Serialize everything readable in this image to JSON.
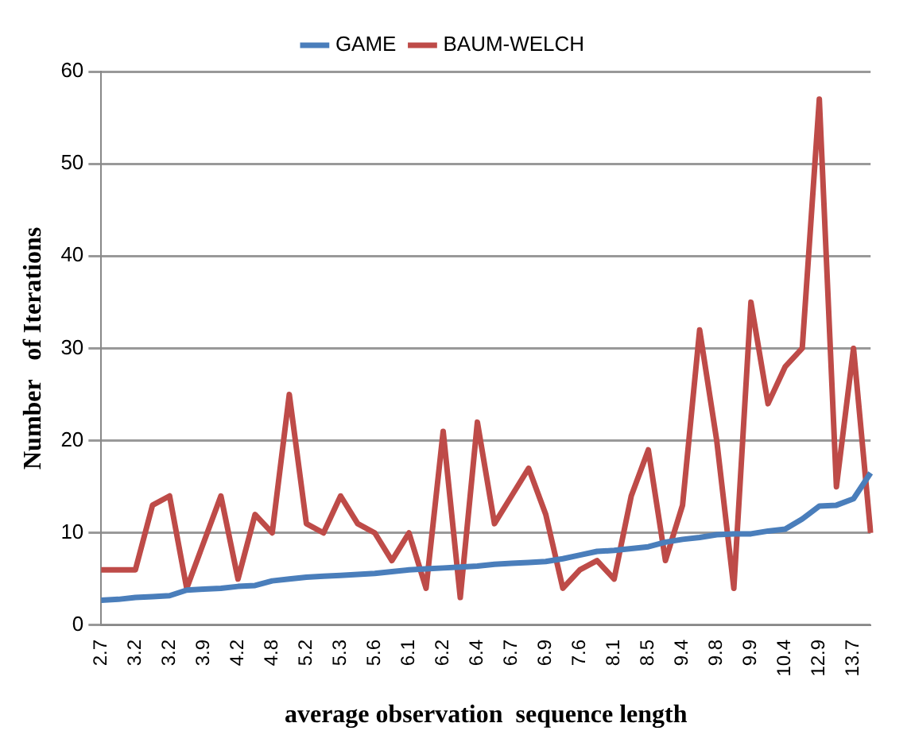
{
  "chart_data": {
    "type": "line",
    "xlabel": "average observation  sequence length",
    "ylabel": "Number   of Iterations",
    "categories": [
      "2.7",
      null,
      "3.2",
      null,
      "3.2",
      null,
      "3.9",
      null,
      "4.2",
      null,
      "4.8",
      null,
      "5.2",
      null,
      "5.3",
      null,
      "5.6",
      null,
      "6.1",
      null,
      "6.2",
      null,
      "6.4",
      null,
      "6.7",
      null,
      "6.9",
      null,
      "7.6",
      null,
      "8.1",
      null,
      "8.5",
      null,
      "9.4",
      null,
      "9.8",
      null,
      "9.9",
      null,
      "10.4",
      null,
      "12.9",
      null,
      "13.7",
      null
    ],
    "series": [
      {
        "name": "GAME",
        "color": "#4a7ebb",
        "values": [
          2.7,
          2.8,
          3,
          3.1,
          3.2,
          3.8,
          3.9,
          4,
          4.2,
          4.3,
          4.8,
          5,
          5.2,
          5.3,
          5.4,
          5.5,
          5.6,
          5.8,
          6,
          6.1,
          6.2,
          6.3,
          6.4,
          6.6,
          6.7,
          6.8,
          6.9,
          7.2,
          7.6,
          8,
          8.1,
          8.3,
          8.5,
          9,
          9.3,
          9.5,
          9.8,
          9.9,
          9.9,
          10.2,
          10.4,
          11.5,
          12.9,
          13,
          13.7,
          16.5
        ]
      },
      {
        "name": "BAUM-WELCH",
        "color": "#be4b48",
        "values": [
          6,
          6,
          6,
          13,
          14,
          4,
          9,
          14,
          5,
          12,
          10,
          25,
          11,
          10,
          14,
          11,
          10,
          7,
          10,
          4,
          21,
          3,
          22,
          11,
          14,
          17,
          12,
          4,
          6,
          7,
          5,
          14,
          19,
          7,
          13,
          32,
          20,
          4,
          35,
          24,
          28,
          30,
          57,
          15,
          30,
          10
        ]
      }
    ],
    "ylim": [
      0,
      60
    ],
    "yticks": [
      0,
      10,
      20,
      30,
      40,
      50,
      60
    ],
    "grid": "y",
    "legend": "top",
    "marker": "none",
    "line_style": "solid"
  }
}
